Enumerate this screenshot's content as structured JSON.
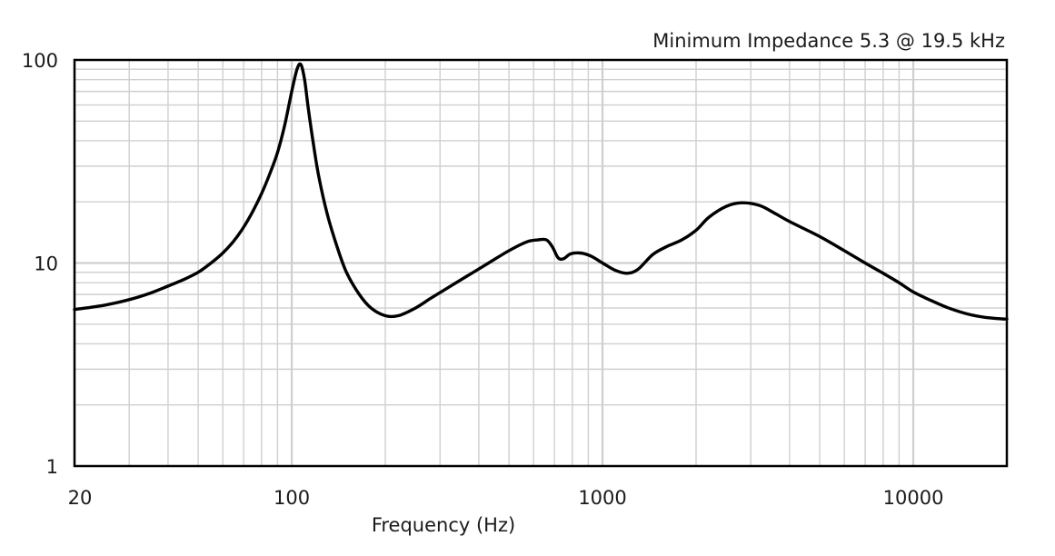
{
  "chart_data": {
    "type": "line",
    "title": "",
    "annotation": "Minimum Impedance 5.3 @ 19.5 kHz",
    "xlabel": "Frequency (Hz)",
    "ylabel": "",
    "x_scale": "log",
    "y_scale": "log",
    "xlim": [
      20,
      20000
    ],
    "ylim": [
      1,
      100
    ],
    "grid": true,
    "x_ticks": [
      {
        "value": 20,
        "label": "20"
      },
      {
        "value": 100,
        "label": "100"
      },
      {
        "value": 1000,
        "label": "1000"
      },
      {
        "value": 10000,
        "label": "10000"
      }
    ],
    "y_ticks": [
      {
        "value": 1,
        "label": "1"
      },
      {
        "value": 10,
        "label": "10"
      },
      {
        "value": 100,
        "label": "100"
      }
    ],
    "series": [
      {
        "color": "#000000",
        "x": [
          20,
          25,
          30,
          35,
          40,
          45,
          50,
          55,
          60,
          65,
          70,
          75,
          80,
          85,
          90,
          95,
          100,
          104,
          107,
          110,
          113,
          117,
          122,
          130,
          140,
          150,
          165,
          180,
          200,
          220,
          250,
          280,
          320,
          370,
          430,
          500,
          570,
          620,
          660,
          690,
          720,
          750,
          790,
          850,
          920,
          1000,
          1100,
          1200,
          1300,
          1450,
          1600,
          1800,
          2000,
          2200,
          2500,
          2800,
          3200,
          3600,
          4000,
          5000,
          6000,
          7000,
          8000,
          9000,
          10000,
          11500,
          13000,
          15000,
          17000,
          19500,
          20000
        ],
        "values": [
          5.9,
          6.2,
          6.6,
          7.1,
          7.7,
          8.3,
          9.0,
          10.0,
          11.2,
          12.8,
          15.0,
          18.0,
          22.0,
          27.5,
          35.0,
          48.0,
          70.0,
          90.0,
          95.0,
          80.0,
          58.0,
          40.0,
          27.0,
          17.5,
          12.0,
          9.0,
          7.0,
          6.0,
          5.5,
          5.5,
          6.0,
          6.7,
          7.6,
          8.7,
          10.0,
          11.5,
          12.7,
          13.0,
          13.0,
          12.0,
          10.6,
          10.5,
          11.1,
          11.2,
          10.8,
          10.0,
          9.2,
          8.9,
          9.3,
          11.0,
          12.0,
          13.0,
          14.5,
          16.8,
          19.0,
          19.8,
          19.2,
          17.5,
          16.0,
          13.5,
          11.5,
          10.0,
          8.9,
          8.0,
          7.2,
          6.5,
          6.0,
          5.6,
          5.4,
          5.3,
          5.3
        ]
      }
    ]
  }
}
